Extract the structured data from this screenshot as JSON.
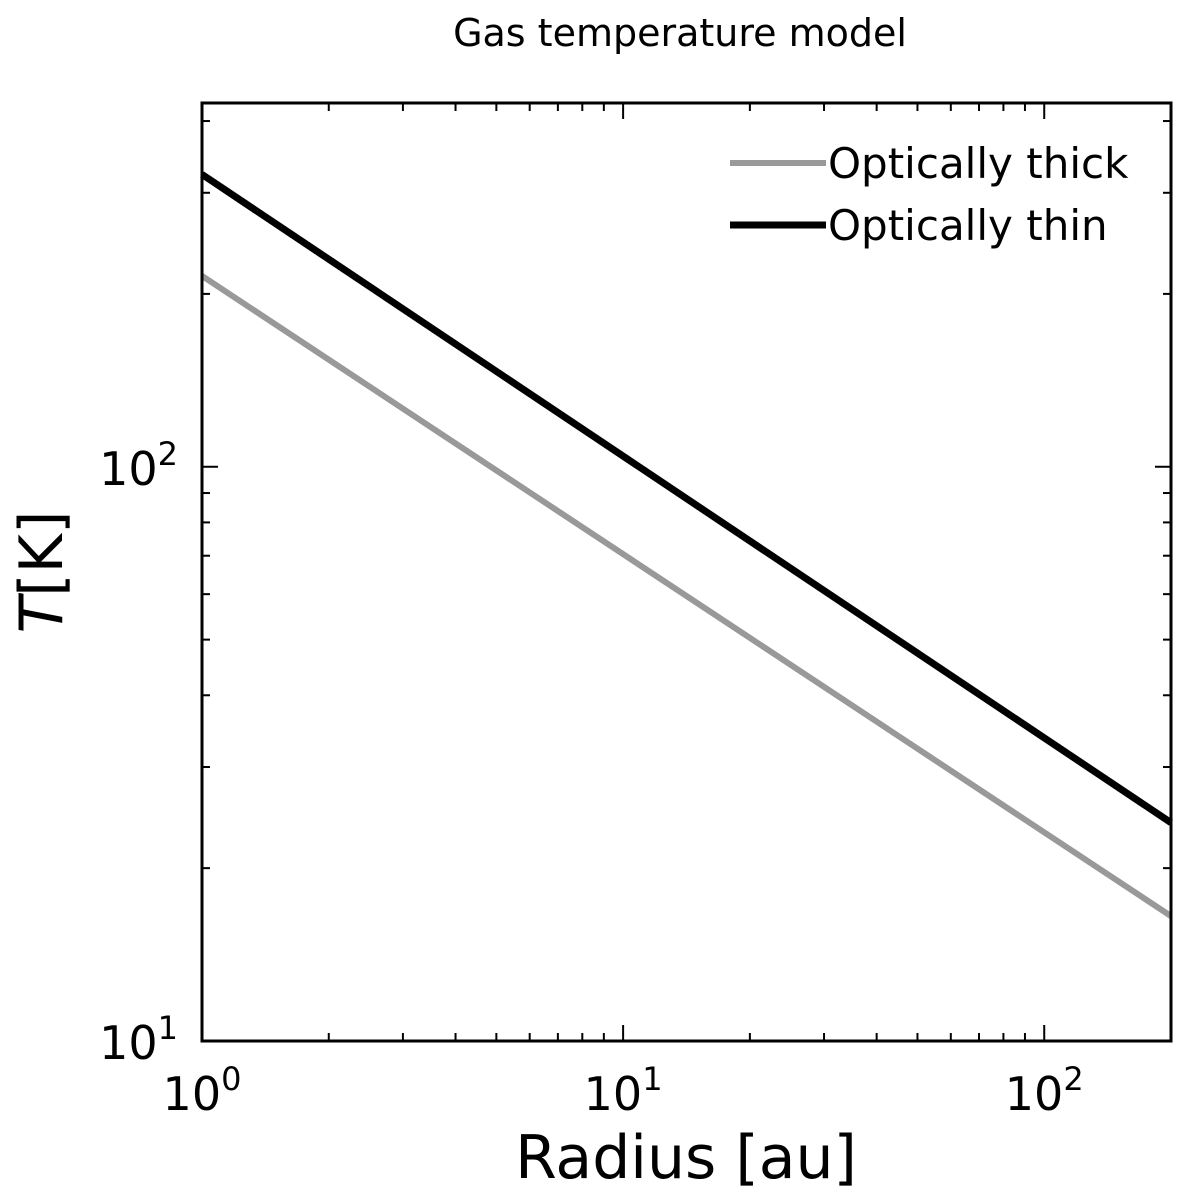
{
  "chart_data": {
    "type": "line",
    "title": "Gas temperature model",
    "xlabel": "Radius [au]",
    "ylabel_symbol": "T",
    "ylabel_unit": "[K]",
    "x_scale": "log",
    "y_scale": "log",
    "xlim": [
      1,
      200
    ],
    "ylim": [
      10,
      430
    ],
    "grid": false,
    "legend_position": "top-right",
    "x_tick_labels": [
      {
        "value": 1,
        "base": "10",
        "exp": "0"
      },
      {
        "value": 10,
        "base": "10",
        "exp": "1"
      },
      {
        "value": 100,
        "base": "10",
        "exp": "2"
      }
    ],
    "y_tick_labels": [
      {
        "value": 10,
        "base": "10",
        "exp": "1"
      },
      {
        "value": 100,
        "base": "10",
        "exp": "2"
      }
    ],
    "series": [
      {
        "name": "Optically thick",
        "color": "#999999",
        "x": [
          1,
          200
        ],
        "y": [
          215,
          16.5
        ]
      },
      {
        "name": "Optically thin",
        "color": "#000000",
        "x": [
          1,
          200
        ],
        "y": [
          323,
          24
        ]
      }
    ]
  }
}
